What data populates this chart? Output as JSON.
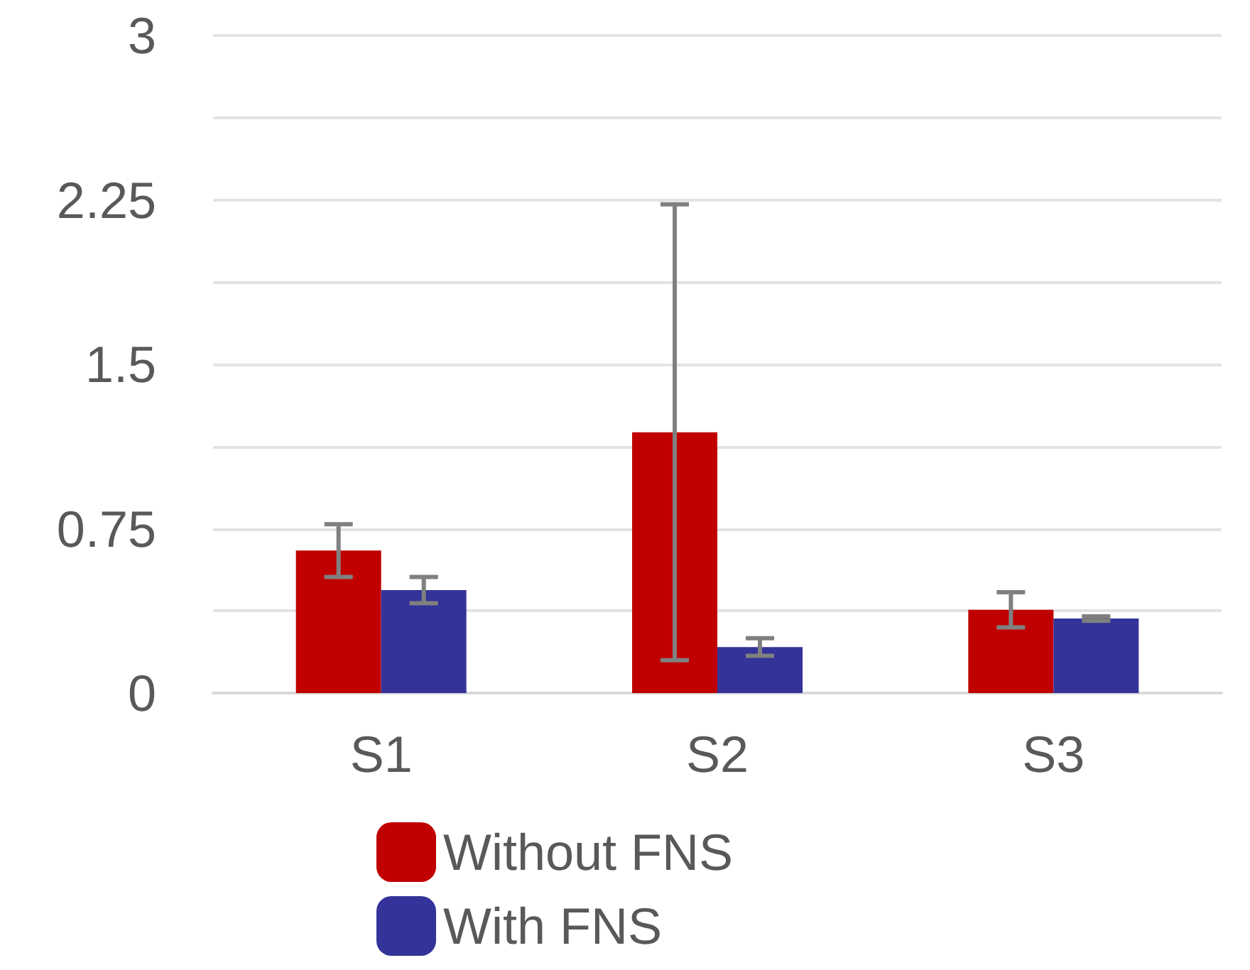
{
  "chart_data": {
    "type": "bar",
    "categories": [
      "S1",
      "S2",
      "S3"
    ],
    "series": [
      {
        "name": "Without FNS",
        "color": "#c00000",
        "values": [
          0.65,
          1.19,
          0.38
        ],
        "errors": [
          0.12,
          1.04,
          0.08
        ]
      },
      {
        "name": "With FNS",
        "color": "#333399",
        "values": [
          0.47,
          0.21,
          0.34
        ],
        "errors": [
          0.06,
          0.04,
          0.01
        ]
      }
    ],
    "ylim": [
      0,
      3
    ],
    "yticks": [
      0,
      {
        "value": 0.375,
        "label": null
      },
      0.75,
      {
        "value": 1.125,
        "label": null
      },
      1.5,
      {
        "value": 1.875,
        "label": null
      },
      2.25,
      {
        "value": 2.625,
        "label": null
      },
      3
    ],
    "grid": "y",
    "legend": "bottom"
  }
}
